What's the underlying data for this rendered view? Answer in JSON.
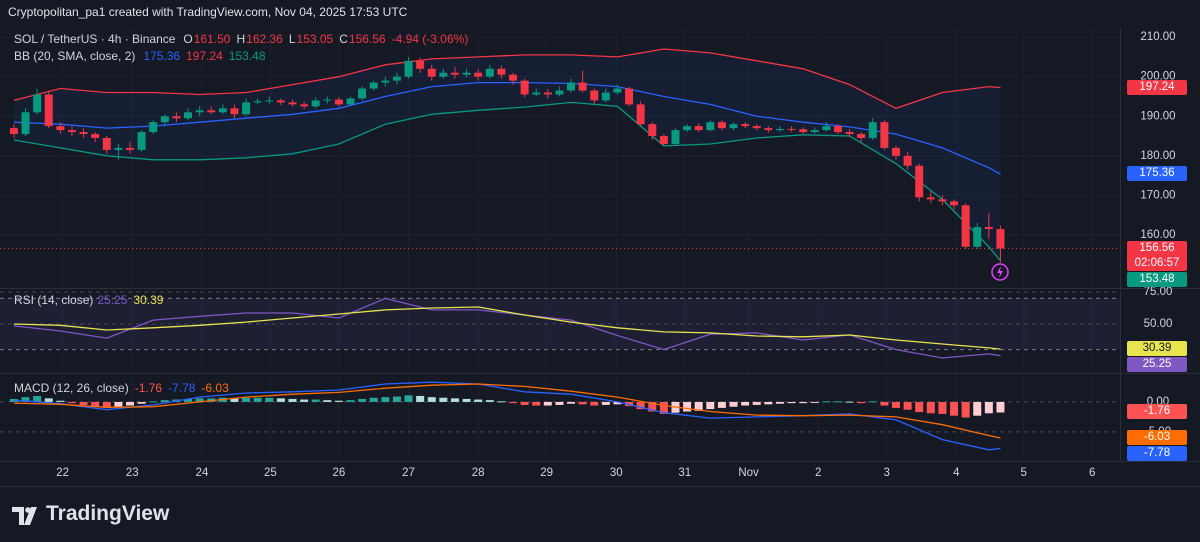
{
  "header": {
    "attribution": "Cryptopolitan_pa1 created with TradingView.com, Nov 04, 2025 17:53 UTC"
  },
  "footer": {
    "logo": "TradingView"
  },
  "chart_data": [
    {
      "type": "candlestick",
      "symbol": "SOL / TetherUS · 4h · Binance",
      "ohlc_names": [
        "O",
        "H",
        "L",
        "C"
      ],
      "last_labels": [
        "161.50",
        "162.36",
        "153.05",
        "156.56"
      ],
      "change": "-4.94 (-3.06%)",
      "countdown": "02:06:57",
      "colors": {
        "up": "#089981",
        "down": "#f23645"
      },
      "candles": [
        [
          187,
          188,
          184.5,
          185.5
        ],
        [
          185.5,
          192,
          185,
          191
        ],
        [
          191,
          197,
          190.5,
          195.5
        ],
        [
          195.5,
          196.5,
          187,
          187.5
        ],
        [
          187.5,
          188.5,
          185.5,
          186.5
        ],
        [
          186.5,
          187.5,
          185,
          186
        ],
        [
          186,
          187,
          184.5,
          185.5
        ],
        [
          185.5,
          186,
          183.5,
          184.5
        ],
        [
          184.5,
          185,
          180.5,
          181.5
        ],
        [
          181.5,
          183,
          179,
          182
        ],
        [
          182,
          183.5,
          180.5,
          181.5
        ],
        [
          181.5,
          186.5,
          181,
          186
        ],
        [
          186,
          189,
          185.5,
          188.5
        ],
        [
          188.5,
          190.5,
          187.5,
          190
        ],
        [
          190,
          191,
          188.5,
          189.5
        ],
        [
          189.5,
          192,
          189,
          191
        ],
        [
          191,
          192.5,
          190,
          191.5
        ],
        [
          191.5,
          192.5,
          190.5,
          191
        ],
        [
          191,
          193,
          190.5,
          192
        ],
        [
          192,
          193,
          189.5,
          190.5
        ],
        [
          190.5,
          194.5,
          190,
          193.5
        ],
        [
          193.5,
          194.5,
          193,
          193.8
        ],
        [
          193.8,
          195,
          193.2,
          194
        ],
        [
          194,
          194.5,
          192.8,
          193.5
        ],
        [
          193.5,
          194.2,
          192.5,
          193
        ],
        [
          193,
          193.8,
          191.8,
          192.5
        ],
        [
          192.5,
          194.8,
          192,
          194
        ],
        [
          194,
          195,
          193.2,
          194.2
        ],
        [
          194.2,
          194.8,
          192.5,
          193
        ],
        [
          193,
          195,
          192.7,
          194.5
        ],
        [
          194.5,
          197.5,
          194,
          197
        ],
        [
          197,
          199,
          196.5,
          198.5
        ],
        [
          198.5,
          200,
          197.5,
          199
        ],
        [
          199,
          201,
          198,
          200
        ],
        [
          200,
          205,
          199.5,
          204
        ],
        [
          204,
          204.8,
          201,
          202
        ],
        [
          202,
          203,
          199,
          200
        ],
        [
          200,
          202,
          199.5,
          201
        ],
        [
          201,
          202.5,
          199.5,
          200.5
        ],
        [
          200.5,
          202,
          199.8,
          201
        ],
        [
          201,
          202,
          199,
          200
        ],
        [
          200,
          203,
          199.5,
          202
        ],
        [
          202,
          202.8,
          199.5,
          200.5
        ],
        [
          200.5,
          201,
          198,
          199
        ],
        [
          199,
          199.5,
          194.8,
          195.5
        ],
        [
          195.5,
          197,
          195,
          196
        ],
        [
          196,
          196.8,
          194.5,
          195.5
        ],
        [
          195.5,
          197.5,
          195,
          196.5
        ],
        [
          196.5,
          199.5,
          196,
          198.5
        ],
        [
          198.5,
          201.5,
          196,
          196.5
        ],
        [
          196.5,
          197,
          193,
          194
        ],
        [
          194,
          197,
          193.5,
          196
        ],
        [
          196,
          198,
          195.5,
          197
        ],
        [
          197,
          197.5,
          192.5,
          193
        ],
        [
          193,
          193.8,
          187.5,
          188
        ],
        [
          188,
          188.5,
          184,
          185
        ],
        [
          185,
          185.5,
          182.5,
          183
        ],
        [
          183,
          187,
          182.8,
          186.5
        ],
        [
          186.5,
          188,
          186,
          187.5
        ],
        [
          187.5,
          188.2,
          186,
          186.5
        ],
        [
          186.5,
          189,
          186.2,
          188.5
        ],
        [
          188.5,
          189,
          186.5,
          187
        ],
        [
          187,
          188.5,
          186.5,
          188
        ],
        [
          188,
          188.5,
          187,
          187.5
        ],
        [
          187.5,
          188,
          186.5,
          187
        ],
        [
          187,
          187.5,
          185.8,
          186.5
        ],
        [
          186.5,
          187.5,
          186,
          186.8
        ],
        [
          186.8,
          187.5,
          186,
          186.7
        ],
        [
          186.7,
          187.2,
          185.5,
          186
        ],
        [
          186,
          187.2,
          185.7,
          186.5
        ],
        [
          186.5,
          188.5,
          186.2,
          187.5
        ],
        [
          187.5,
          188,
          185.5,
          186
        ],
        [
          186,
          186.8,
          184.8,
          185.5
        ],
        [
          185.5,
          186,
          183.5,
          184.5
        ],
        [
          184.5,
          189.5,
          184,
          188.5
        ],
        [
          188.5,
          189,
          181.5,
          182
        ],
        [
          182,
          182.5,
          179,
          180
        ],
        [
          180,
          181,
          176.5,
          177.5
        ],
        [
          177.5,
          178,
          168.5,
          169.5
        ],
        [
          169.5,
          171,
          168,
          169
        ],
        [
          169,
          170,
          167.5,
          168.5
        ],
        [
          168.5,
          169,
          166.5,
          167.5
        ],
        [
          167.5,
          168,
          156.5,
          157
        ],
        [
          157,
          163,
          156.5,
          162
        ],
        [
          162,
          165.5,
          159,
          161.5
        ],
        [
          161.5,
          162.36,
          153.05,
          156.56
        ]
      ],
      "bands": {
        "name": "BB (20, SMA, close, 2)",
        "fill": "#2962ff",
        "x": [
          0,
          4,
          8,
          12,
          16,
          20,
          24,
          28,
          32,
          36,
          40,
          44,
          48,
          52,
          56,
          60,
          64,
          68,
          72,
          76,
          80,
          84,
          85
        ],
        "series": [
          {
            "color": "#2962ff",
            "last_label": "175.36",
            "values": [
              188.5,
              188,
              187,
              187.5,
              188.5,
              189.5,
              190.5,
              192,
              195,
              197.5,
              198.5,
              198.5,
              198.3,
              197.5,
              195,
              193,
              190,
              188.5,
              187.3,
              185.5,
              182,
              177,
              175.36
            ]
          },
          {
            "color": "#f23645",
            "last_label": "197.24",
            "values": [
              194,
              197,
              196,
              196,
              195.5,
              196,
              198,
              200,
              203,
              204.5,
              205,
              205.5,
              205.5,
              205,
              207,
              206,
              204,
              202,
              198,
              192,
              196,
              197.5,
              197.24
            ]
          },
          {
            "color": "#089981",
            "last_label": "153.48",
            "values": [
              184,
              182,
              180,
              179,
              179,
              179.5,
              180.5,
              183,
              188,
              190.5,
              191.5,
              192.3,
              193.5,
              192.5,
              182.5,
              183,
              184.5,
              185.3,
              185,
              178,
              169,
              157,
              153.48
            ]
          }
        ]
      },
      "xlim": [
        -1.2,
        95.3
      ],
      "ylim": [
        146.6,
        212.3
      ],
      "yticks": [
        {
          "value": 160,
          "label": "160.00"
        },
        {
          "value": 170,
          "label": "170.00"
        },
        {
          "value": 180,
          "label": "180.00"
        },
        {
          "value": 190,
          "label": "190.00"
        },
        {
          "value": 200,
          "label": "200.00"
        },
        {
          "value": 210,
          "label": "210.00"
        }
      ]
    },
    {
      "type": "line",
      "title": "RSI (14, close)",
      "x": [
        0,
        4,
        8,
        12,
        16,
        20,
        24,
        28,
        32,
        36,
        40,
        44,
        48,
        52,
        56,
        60,
        64,
        68,
        72,
        76,
        80,
        84,
        85
      ],
      "series": [
        {
          "color": "#7e57c2",
          "last_label": "25.25",
          "values": [
            48.5,
            44.5,
            39,
            53,
            56,
            58.6,
            58.6,
            54.7,
            70,
            61,
            61,
            57,
            53,
            41,
            30,
            42,
            43,
            37.5,
            41.5,
            30,
            23.4,
            26.6,
            25.25
          ]
        },
        {
          "color": "#e8e44e",
          "last_label": "30.39",
          "values": [
            50,
            49,
            45.3,
            47,
            49,
            51.5,
            54.7,
            57.8,
            61,
            62.5,
            63.3,
            57,
            51.5,
            47,
            43.8,
            43,
            40.6,
            40,
            41.4,
            37.5,
            34.4,
            31.3,
            30.39
          ]
        }
      ],
      "bands": [
        30,
        70
      ],
      "band_fill": "#7e57c2",
      "xlim": [
        -1.2,
        95.3
      ],
      "ylim": [
        12.5,
        78.1
      ],
      "yticks": [
        {
          "value": 50,
          "label": "50.00"
        },
        {
          "value": 75,
          "label": "75.00"
        }
      ]
    },
    {
      "type": "macd",
      "title": "MACD (12, 26, close)",
      "histogram": [
        0.5,
        0.8,
        1.0,
        0.6,
        0.2,
        -0.2,
        -0.5,
        -0.8,
        -1.0,
        -0.8,
        -0.6,
        -0.3,
        0.1,
        0.3,
        0.4,
        0.5,
        0.6,
        0.6,
        0.7,
        0.6,
        0.7,
        0.7,
        0.7,
        0.6,
        0.5,
        0.4,
        0.4,
        0.3,
        0.2,
        0.3,
        0.5,
        0.7,
        0.8,
        0.9,
        1.1,
        1.0,
        0.8,
        0.7,
        0.6,
        0.5,
        0.4,
        0.3,
        0.1,
        -0.2,
        -0.5,
        -0.6,
        -0.6,
        -0.5,
        -0.3,
        -0.4,
        -0.6,
        -0.5,
        -0.4,
        -0.7,
        -1.2,
        -1.6,
        -2.0,
        -1.8,
        -1.6,
        -1.5,
        -1.2,
        -1.0,
        -0.8,
        -0.6,
        -0.5,
        -0.4,
        -0.3,
        -0.2,
        -0.2,
        -0.1,
        0.1,
        0.1,
        0.05,
        -0.2,
        0.1,
        -0.6,
        -1.0,
        -1.3,
        -1.7,
        -1.9,
        -2.0,
        -2.3,
        -2.6,
        -2.3,
        -1.9,
        -1.76
      ],
      "histogram_label": "-1.76",
      "histogram_colors": [
        "#26a69a",
        "#b2dfdb",
        "#ff5252",
        "#ffcdd2"
      ],
      "x": [
        0,
        4,
        8,
        12,
        16,
        20,
        24,
        28,
        32,
        36,
        40,
        44,
        48,
        52,
        56,
        60,
        64,
        68,
        72,
        76,
        80,
        84,
        85
      ],
      "series": [
        {
          "color": "#2962ff",
          "last_label": "-7.78",
          "values": [
            0.3,
            -0.3,
            -1.3,
            -0.5,
            0.8,
            1.5,
            1.7,
            2,
            3,
            3.3,
            3,
            1.7,
            1.3,
            0,
            -1.8,
            -2.7,
            -2.5,
            -2.3,
            -2,
            -3,
            -6.3,
            -8,
            -7.78
          ]
        },
        {
          "color": "#ff6d00",
          "last_label": "-6.03",
          "values": [
            -0.2,
            -0.4,
            -0.9,
            -0.8,
            0,
            0.8,
            1.3,
            1.6,
            2.3,
            2.8,
            3.0,
            2.6,
            1.8,
            0.8,
            -0.6,
            -1.6,
            -2.2,
            -2.3,
            -2.2,
            -2.5,
            -3.8,
            -5.6,
            -6.03
          ]
        }
      ],
      "xlim": [
        -1.2,
        95.3
      ],
      "ylim": [
        -9.7,
        4.5
      ],
      "yticks": [
        {
          "value": -5,
          "label": "-5.00"
        },
        {
          "value": 0,
          "label": "0.00"
        }
      ],
      "xticks": [
        {
          "value": 4.2,
          "label": "22"
        },
        {
          "value": 10.2,
          "label": "23"
        },
        {
          "value": 16.2,
          "label": "24"
        },
        {
          "value": 22.1,
          "label": "25"
        },
        {
          "value": 28.0,
          "label": "26"
        },
        {
          "value": 34.0,
          "label": "27"
        },
        {
          "value": 40.0,
          "label": "28"
        },
        {
          "value": 45.9,
          "label": "29"
        },
        {
          "value": 51.9,
          "label": "30"
        },
        {
          "value": 57.8,
          "label": "31"
        },
        {
          "value": 63.3,
          "label": "Nov"
        },
        {
          "value": 69.3,
          "label": "2"
        },
        {
          "value": 75.2,
          "label": "3"
        },
        {
          "value": 81.2,
          "label": "4"
        },
        {
          "value": 87.0,
          "label": "5"
        },
        {
          "value": 92.9,
          "label": "6"
        }
      ]
    }
  ]
}
